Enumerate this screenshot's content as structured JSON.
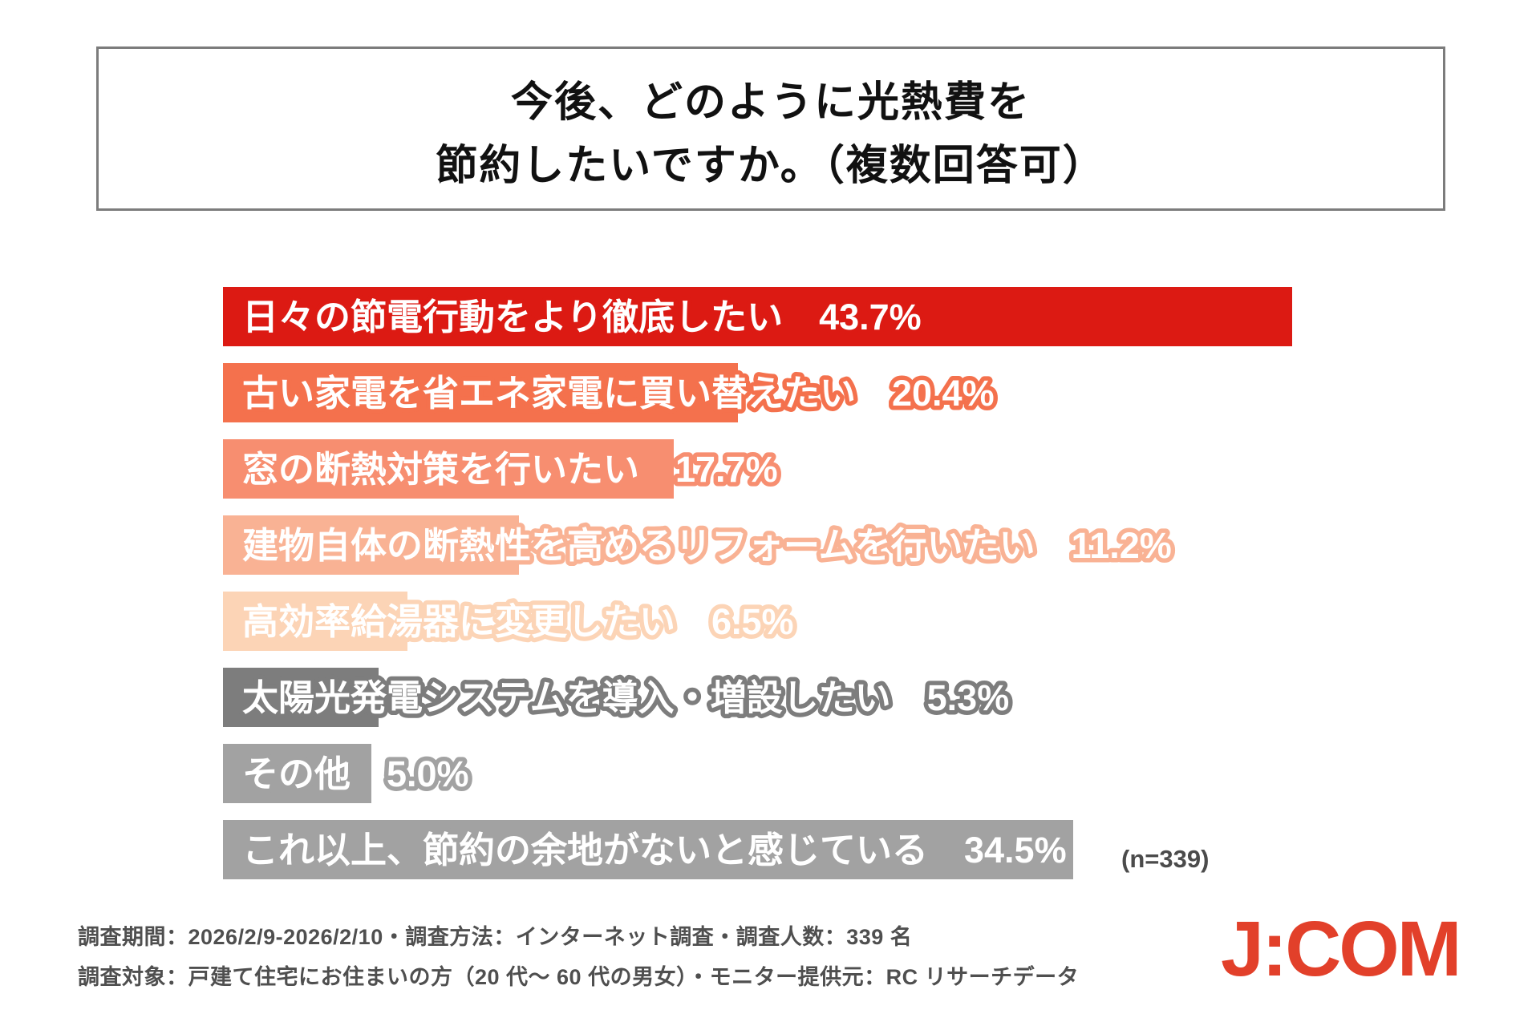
{
  "title": {
    "line1": "今後、どのように光熱費を",
    "line2": "節約したいですか。（複数回答可）"
  },
  "chart_data": {
    "type": "bar",
    "orientation": "horizontal",
    "unit": "%",
    "value_range": [
      0,
      45
    ],
    "grid": false,
    "legend": false,
    "bars": [
      {
        "label": "日々の節電行動をより徹底したい",
        "value": 43.7,
        "color": "#dc1a13"
      },
      {
        "label": "古い家電を省エネ家電に買い替えたい",
        "value": 20.4,
        "color": "#f4714d"
      },
      {
        "label": "窓の断熱対策を行いたい",
        "value": 17.7,
        "color": "#f78e70"
      },
      {
        "label": "建物自体の断熱性を高めるリフォームを行いたい",
        "value": 11.2,
        "color": "#f9b294"
      },
      {
        "label": "高効率給湯器に変更したい",
        "value": 6.5,
        "color": "#fcd4b6"
      },
      {
        "label": "太陽光発電システムを導入・増設したい",
        "value": 5.3,
        "color": "#7d7d7d"
      },
      {
        "label": "その他",
        "value": 5.0,
        "color": "#a2a2a2"
      },
      {
        "label": "これ以上、節約の余地がないと感じている",
        "value": 34.5,
        "color": "#a2a2a2"
      }
    ],
    "sample_note": "(n=339)"
  },
  "footer": {
    "line1": "調査期間：2026/2/9-2026/2/10・調査方法：インターネット調査・調査人数：339 名",
    "line2": "調査対象：戸建て住宅にお住まいの方（20 代～ 60 代の男女）・モニター提供元：RC リサーチデータ"
  },
  "logo": {
    "text": "J:COM",
    "color": "#e2402a"
  }
}
